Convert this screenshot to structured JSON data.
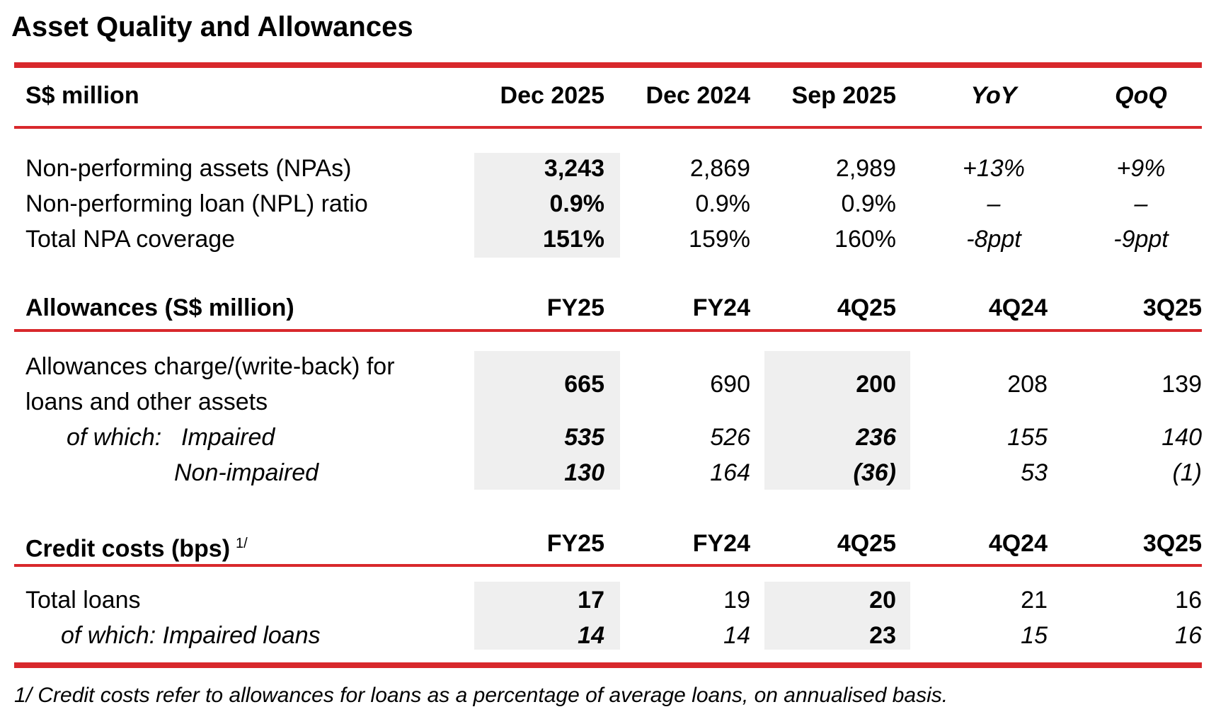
{
  "title": "Asset Quality and Allowances",
  "colors": {
    "accent": "#d8282c",
    "shade": "#efefef"
  },
  "section1": {
    "header": {
      "label": "S$ million",
      "columns": [
        "Dec 2025",
        "Dec 2024",
        "Sep 2025",
        "YoY",
        "QoQ"
      ]
    },
    "rows": [
      {
        "label": "Non-performing assets (NPAs)",
        "values": [
          "3,243",
          "2,869",
          "2,989",
          "+13%",
          "+9%"
        ]
      },
      {
        "label": "Non-performing loan (NPL) ratio",
        "values": [
          "0.9%",
          "0.9%",
          "0.9%",
          "–",
          "–"
        ]
      },
      {
        "label": "Total NPA coverage",
        "values": [
          "151%",
          "159%",
          "160%",
          "-8ppt",
          "-9ppt"
        ]
      }
    ]
  },
  "section2": {
    "header": {
      "label": "Allowances (S$ million)",
      "columns": [
        "FY25",
        "FY24",
        "4Q25",
        "4Q24",
        "3Q25"
      ]
    },
    "rows": [
      {
        "label_line1": "Allowances charge/(write-back) for",
        "label_line2": "loans and other assets",
        "values": [
          "665",
          "690",
          "200",
          "208",
          "139"
        ]
      },
      {
        "label_prefix": "of which:",
        "label": "Impaired",
        "values": [
          "535",
          "526",
          "236",
          "155",
          "140"
        ]
      },
      {
        "label": "Non-impaired",
        "values": [
          "130",
          "164",
          "(36)",
          "53",
          "(1)"
        ]
      }
    ]
  },
  "section3": {
    "header": {
      "label": "Credit costs (bps)",
      "footnote_ref": "1/",
      "columns": [
        "FY25",
        "FY24",
        "4Q25",
        "4Q24",
        "3Q25"
      ]
    },
    "rows": [
      {
        "label": "Total loans",
        "values": [
          "17",
          "19",
          "20",
          "21",
          "16"
        ]
      },
      {
        "label": "of which: Impaired loans",
        "values": [
          "14",
          "14",
          "23",
          "15",
          "16"
        ]
      }
    ]
  },
  "footnote": "1/ Credit costs refer to allowances for loans as a percentage of average loans, on annualised basis."
}
